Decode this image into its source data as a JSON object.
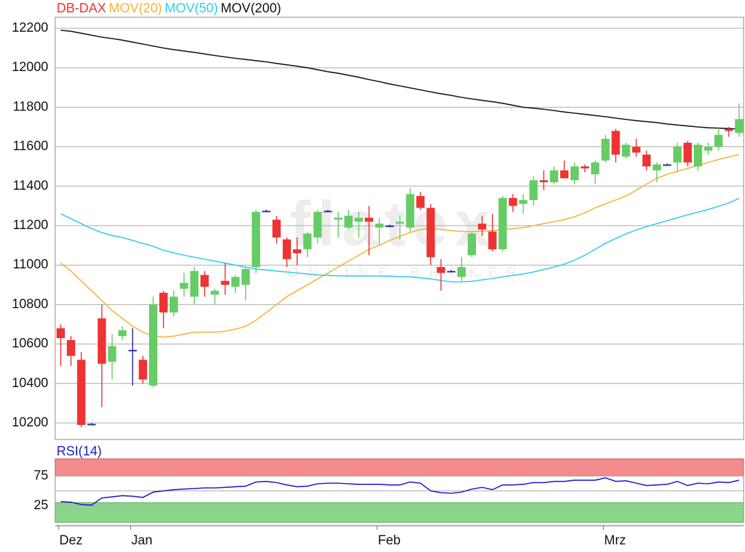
{
  "chart_data": [
    {
      "type": "candlestick",
      "name": "DB-DAX",
      "up_color": "#66cc66",
      "down_color": "#ee3333",
      "flat_color": "#2a2a9a",
      "name_color": "#ee3333",
      "watermark": {
        "brand": "flatex",
        "tagline": "ONLINE BROKER"
      },
      "open": [
        10680,
        10620,
        10520,
        10195,
        10730,
        10510,
        10640,
        10570,
        10520,
        10390,
        10860,
        10760,
        10880,
        10840,
        10950,
        10850,
        10920,
        10890,
        10900,
        10990,
        11275,
        11230,
        11130,
        11080,
        11080,
        11140,
        11275,
        11230,
        11190,
        11220,
        11240,
        11190,
        11200,
        11210,
        11190,
        11350,
        11290,
        10990,
        10970,
        10940,
        11050,
        11210,
        11170,
        11080,
        11340,
        11310,
        11330,
        11430,
        11420,
        11480,
        11430,
        11500,
        11460,
        11530,
        11680,
        11550,
        11600,
        11560,
        11480,
        11510,
        11520,
        11620,
        11500,
        11580,
        11600,
        11690,
        11670
      ],
      "high": [
        10700,
        10640,
        10560,
        10200,
        10800,
        10650,
        10690,
        10680,
        10540,
        10840,
        10870,
        10870,
        10960,
        10990,
        10970,
        10880,
        11010,
        10950,
        10990,
        11280,
        11280,
        11250,
        11140,
        11140,
        11170,
        11280,
        11280,
        11270,
        11280,
        11270,
        11300,
        11240,
        11205,
        11250,
        11390,
        11370,
        11310,
        11030,
        10975,
        11040,
        11170,
        11250,
        11260,
        11350,
        11360,
        11360,
        11450,
        11480,
        11500,
        11530,
        11520,
        11510,
        11530,
        11660,
        11690,
        11620,
        11640,
        11580,
        11520,
        11515,
        11620,
        11630,
        11620,
        11620,
        11700,
        11700,
        11820
      ],
      "low": [
        10490,
        10490,
        10180,
        10190,
        10280,
        10420,
        10620,
        10390,
        10400,
        10380,
        10680,
        10740,
        10840,
        10800,
        10840,
        10800,
        10850,
        10860,
        10820,
        10960,
        11270,
        11110,
        10990,
        11000,
        11040,
        11110,
        11270,
        11140,
        11180,
        11140,
        11050,
        11100,
        11195,
        11130,
        11170,
        11280,
        11000,
        10870,
        10965,
        10920,
        11040,
        11150,
        11070,
        11070,
        11270,
        11260,
        11300,
        11380,
        11410,
        11440,
        11410,
        11470,
        11410,
        11520,
        11520,
        11540,
        11550,
        11480,
        11420,
        11505,
        11470,
        11500,
        11480,
        11560,
        11580,
        11650,
        11650
      ],
      "close": [
        10630,
        10540,
        10190,
        10195,
        10500,
        10590,
        10670,
        10570,
        10420,
        10800,
        10760,
        10840,
        10910,
        10970,
        10890,
        10870,
        10900,
        10940,
        10980,
        11270,
        11275,
        11140,
        11030,
        11060,
        11160,
        11270,
        11275,
        11240,
        11250,
        11240,
        11220,
        11210,
        11200,
        11220,
        11360,
        11290,
        11040,
        10960,
        10970,
        10990,
        11160,
        11180,
        11080,
        11340,
        11300,
        11330,
        11430,
        11420,
        11480,
        11440,
        11500,
        11490,
        11520,
        11640,
        11560,
        11610,
        11570,
        11500,
        11510,
        11510,
        11600,
        11520,
        11610,
        11600,
        11660,
        11680,
        11740
      ],
      "series": [
        {
          "name": "MOV(20)",
          "color": "#f5b335",
          "values": [
            11010,
            10970,
            10920,
            10870,
            10820,
            10770,
            10730,
            10690,
            10660,
            10640,
            10635,
            10640,
            10650,
            10660,
            10660,
            10660,
            10665,
            10675,
            10690,
            10720,
            10760,
            10800,
            10840,
            10870,
            10900,
            10930,
            10960,
            10990,
            11020,
            11050,
            11080,
            11100,
            11125,
            11145,
            11165,
            11180,
            11185,
            11180,
            11175,
            11170,
            11170,
            11172,
            11175,
            11180,
            11185,
            11190,
            11200,
            11210,
            11220,
            11230,
            11245,
            11265,
            11290,
            11310,
            11330,
            11350,
            11380,
            11410,
            11440,
            11460,
            11475,
            11490,
            11505,
            11520,
            11535,
            11548,
            11560
          ]
        },
        {
          "name": "MOV(50)",
          "color": "#33ccee",
          "values": [
            11260,
            11235,
            11210,
            11185,
            11165,
            11150,
            11140,
            11125,
            11110,
            11095,
            11075,
            11062,
            11050,
            11040,
            11030,
            11020,
            11010,
            11000,
            10990,
            10980,
            10975,
            10970,
            10965,
            10960,
            10955,
            10950,
            10948,
            10946,
            10945,
            10945,
            10945,
            10945,
            10944,
            10942,
            10940,
            10935,
            10930,
            10922,
            10915,
            10915,
            10918,
            10925,
            10932,
            10940,
            10948,
            10955,
            10965,
            10978,
            10990,
            11005,
            11025,
            11050,
            11080,
            11110,
            11135,
            11158,
            11178,
            11195,
            11210,
            11225,
            11240,
            11255,
            11268,
            11282,
            11298,
            11315,
            11338
          ]
        },
        {
          "name": "MOV(200)",
          "color": "#111111",
          "values": [
            12190,
            12185,
            12175,
            12165,
            12155,
            12148,
            12140,
            12130,
            12120,
            12110,
            12100,
            12092,
            12085,
            12078,
            12070,
            12062,
            12055,
            12048,
            12042,
            12036,
            12030,
            12022,
            12015,
            12008,
            12000,
            11990,
            11980,
            11972,
            11962,
            11952,
            11940,
            11930,
            11918,
            11908,
            11898,
            11888,
            11878,
            11868,
            11860,
            11850,
            11842,
            11835,
            11828,
            11820,
            11810,
            11800,
            11795,
            11790,
            11783,
            11776,
            11770,
            11764,
            11758,
            11752,
            11745,
            11738,
            11732,
            11727,
            11722,
            11715,
            11710,
            11705,
            11700,
            11696,
            11694,
            11692,
            11690
          ]
        }
      ],
      "ylim": [
        10116,
        12256
      ],
      "yticks": [
        10200,
        10400,
        10600,
        10800,
        11000,
        11200,
        11400,
        11600,
        11800,
        12000,
        12200
      ],
      "grid": true
    },
    {
      "type": "line",
      "title": "RSI(14)",
      "title_color": "#1a1ad0",
      "categories": [
        "Dez",
        null,
        null,
        null,
        null,
        null,
        null,
        "Jan",
        null,
        null,
        null,
        null,
        null,
        null,
        null,
        null,
        null,
        null,
        null,
        null,
        null,
        null,
        null,
        null,
        null,
        null,
        null,
        null,
        null,
        null,
        null,
        "Feb",
        null,
        null,
        null,
        null,
        null,
        null,
        null,
        null,
        null,
        null,
        null,
        null,
        null,
        null,
        null,
        null,
        null,
        null,
        null,
        null,
        null,
        "Mrz",
        null,
        null,
        null,
        null,
        null,
        null,
        null,
        null,
        null,
        null,
        null,
        null,
        null
      ],
      "series": [
        {
          "name": "RSI(14)",
          "color": "#1a1ad0",
          "values": [
            32,
            31,
            27,
            26,
            38,
            40,
            42,
            41,
            39,
            48,
            50,
            52,
            53,
            54,
            55,
            55,
            56,
            57,
            58,
            65,
            66,
            64,
            60,
            57,
            58,
            62,
            63,
            63,
            62,
            61,
            61,
            61,
            60,
            60,
            65,
            63,
            50,
            47,
            46,
            48,
            53,
            56,
            52,
            60,
            60,
            61,
            64,
            64,
            66,
            66,
            68,
            68,
            68,
            72,
            66,
            67,
            63,
            59,
            60,
            61,
            66,
            59,
            63,
            62,
            65,
            64,
            68
          ]
        }
      ],
      "overbought": 75,
      "oversold": 30,
      "overbought_color": "#f28b8b",
      "oversold_color": "#8cd68c",
      "midline": 50,
      "ylim": [
        -3,
        104
      ],
      "yticks": [
        25,
        75
      ],
      "grid": true
    }
  ]
}
